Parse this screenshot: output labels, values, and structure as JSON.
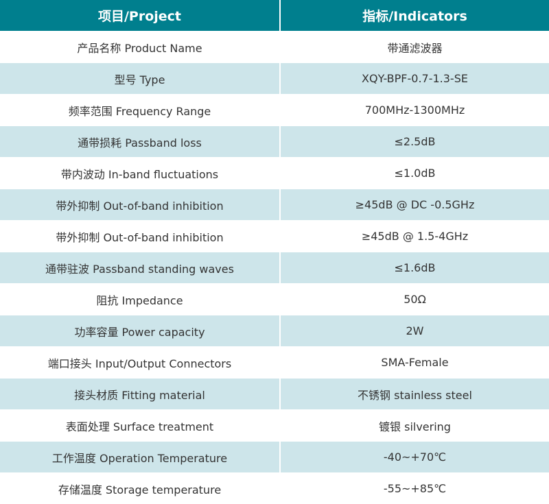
{
  "header": {
    "project": "项目/Project",
    "indicators": "指标/Indicators"
  },
  "colors": {
    "header": "#007f8e",
    "alt_row": "#cde5ea"
  },
  "rows": [
    {
      "project": "产品名称 Product Name",
      "value": "带通滤波器"
    },
    {
      "project": "型号 Type",
      "value": "XQY-BPF-0.7-1.3-SE"
    },
    {
      "project": "频率范围 Frequency Range",
      "value": "700MHz-1300MHz"
    },
    {
      "project": "通带损耗 Passband loss",
      "value": "≤2.5dB"
    },
    {
      "project": "带内波动 In-band fluctuations",
      "value": "≤1.0dB"
    },
    {
      "project": "带外抑制 Out-of-band inhibition",
      "value": "≥45dB @ DC -0.5GHz"
    },
    {
      "project": "带外抑制 Out-of-band inhibition",
      "value": "≥45dB @ 1.5-4GHz"
    },
    {
      "project": "通带驻波 Passband standing waves",
      "value": "≤1.6dB"
    },
    {
      "project": "阻抗 Impedance",
      "value": "50Ω"
    },
    {
      "project": "功率容量 Power capacity",
      "value": "2W"
    },
    {
      "project": "端口接头 Input/Output Connectors",
      "value": "SMA-Female"
    },
    {
      "project": "接头材质 Fitting material",
      "value": "不锈钢 stainless steel"
    },
    {
      "project": "表面处理 Surface treatment",
      "value": "镀银 silvering"
    },
    {
      "project": "工作温度 Operation Temperature",
      "value": "-40~+70℃"
    },
    {
      "project": "存储温度 Storage temperature",
      "value": "-55~+85℃"
    }
  ]
}
